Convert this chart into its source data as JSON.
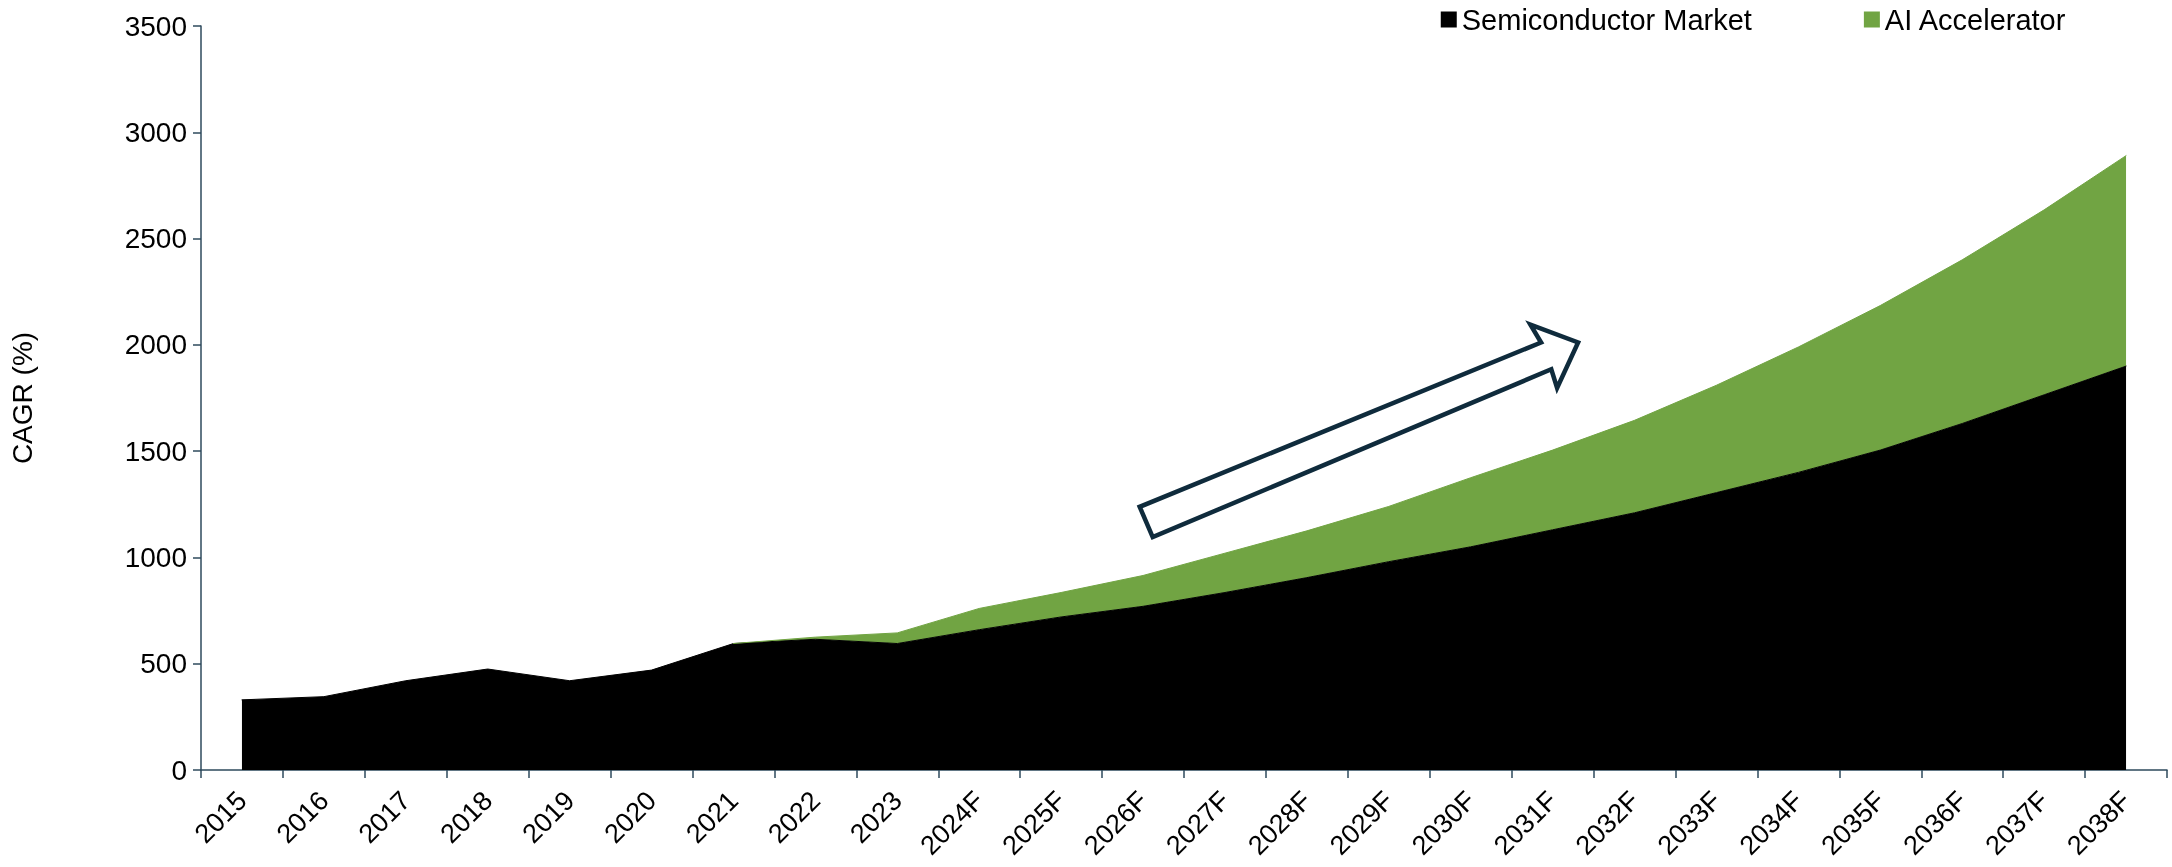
{
  "chart_data": {
    "type": "area",
    "ylabel": "CAGR (%)",
    "categories": [
      "2015",
      "2016",
      "2017",
      "2018",
      "2019",
      "2020",
      "2021",
      "2022",
      "2023",
      "2024F",
      "2025F",
      "2026F",
      "2027F",
      "2028F",
      "2029F",
      "2030F",
      "2031F",
      "2032F",
      "2033F",
      "2034F",
      "2035F",
      "2036F",
      "2037F",
      "2038F"
    ],
    "series": [
      {
        "name": "Semiconductor Market",
        "color": "#000000",
        "values": [
          330,
          345,
          420,
          475,
          420,
          470,
          595,
          615,
          595,
          660,
          720,
          770,
          835,
          905,
          980,
          1050,
          1130,
          1210,
          1305,
          1400,
          1505,
          1630,
          1765,
          1900
        ]
      },
      {
        "name": "AI Accelerator",
        "color": "#71a443",
        "values": [
          null,
          null,
          null,
          null,
          null,
          null,
          0,
          10,
          50,
          100,
          115,
          145,
          185,
          220,
          260,
          325,
          375,
          435,
          505,
          590,
          680,
          770,
          870,
          990
        ]
      }
    ],
    "stacked": true,
    "ylim": [
      0,
      3500
    ],
    "yticks": [
      0,
      500,
      1000,
      1500,
      2000,
      2500,
      3000,
      3500
    ],
    "legend": "top right"
  }
}
